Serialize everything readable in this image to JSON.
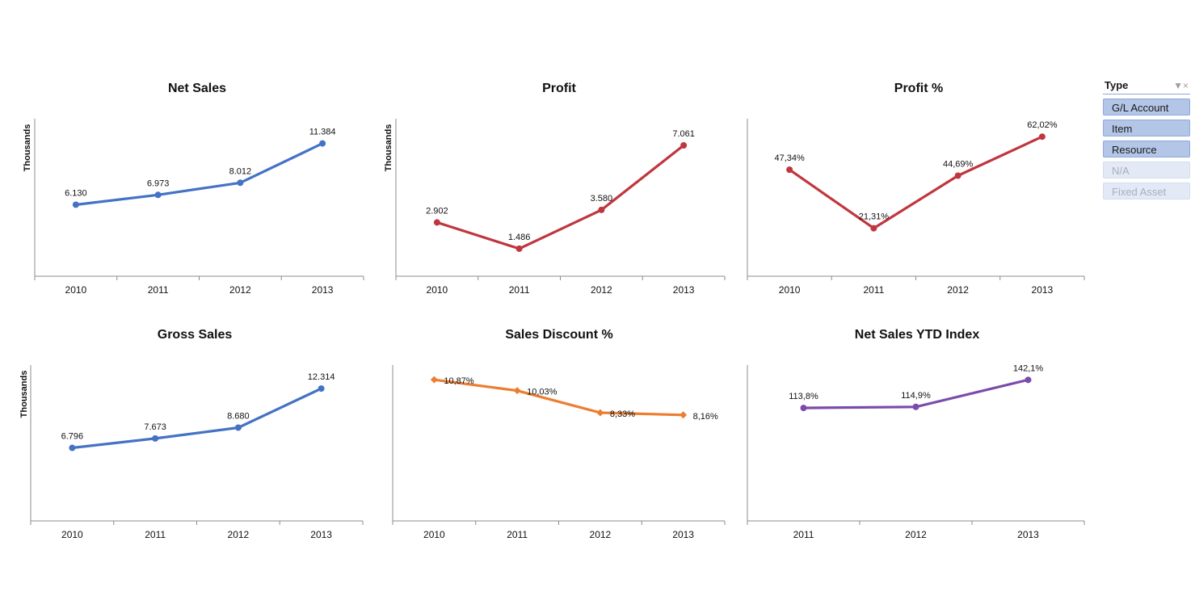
{
  "chart_data": [
    {
      "type": "line",
      "title": "Net Sales",
      "ylabel": "Thousands",
      "categories": [
        "2010",
        "2011",
        "2012",
        "2013"
      ],
      "values": [
        6.13,
        6.973,
        8.012,
        11.384
      ],
      "labels": [
        "6.130",
        "6.973",
        "8.012",
        "11.384"
      ],
      "ylim": [
        0,
        13.5
      ],
      "color": "#4472c4",
      "marker": "circle"
    },
    {
      "type": "line",
      "title": "Profit",
      "ylabel": "Thousands",
      "categories": [
        "2010",
        "2011",
        "2012",
        "2013"
      ],
      "values": [
        2.902,
        1.486,
        3.58,
        7.061
      ],
      "labels": [
        "2.902",
        "1.486",
        "3.580",
        "7.061"
      ],
      "ylim": [
        0,
        8.5
      ],
      "color": "#c0363f",
      "marker": "circle"
    },
    {
      "type": "line",
      "title": "Profit %",
      "ylabel": "",
      "categories": [
        "2010",
        "2011",
        "2012",
        "2013"
      ],
      "values": [
        47.34,
        21.31,
        44.69,
        62.02
      ],
      "labels": [
        "47,34%",
        "21,31%",
        "44,69%",
        "62,02%"
      ],
      "ylim": [
        0,
        70
      ],
      "color": "#c0363f",
      "marker": "circle"
    },
    {
      "type": "line",
      "title": "Gross Sales",
      "ylabel": "Thousands",
      "categories": [
        "2010",
        "2011",
        "2012",
        "2013"
      ],
      "values": [
        6.796,
        7.673,
        8.68,
        12.314
      ],
      "labels": [
        "6.796",
        "7.673",
        "8.680",
        "12.314"
      ],
      "ylim": [
        0,
        14.5
      ],
      "color": "#4472c4",
      "marker": "circle"
    },
    {
      "type": "line",
      "title": "Sales Discount %",
      "ylabel": "",
      "categories": [
        "2010",
        "2011",
        "2012",
        "2013"
      ],
      "values": [
        10.87,
        10.03,
        8.33,
        8.16
      ],
      "labels": [
        "10,87%",
        "10,03%",
        "8,33%",
        "8,16%"
      ],
      "ylim": [
        0,
        12
      ],
      "color": "#ed7d31",
      "marker": "diamond"
    },
    {
      "type": "line",
      "title": "Net Sales YTD Index",
      "ylabel": "",
      "categories": [
        "2011",
        "2012",
        "2013"
      ],
      "values": [
        113.8,
        114.9,
        142.1
      ],
      "labels": [
        "113,8%",
        "114,9%",
        "142,1%"
      ],
      "ylim": [
        0,
        157
      ],
      "color": "#7b4bab",
      "marker": "circle"
    }
  ],
  "slicer": {
    "title": "Type",
    "clear_icon": "clear-filter-icon",
    "items": [
      {
        "label": "G/L Account",
        "state": "selected"
      },
      {
        "label": "Item",
        "state": "selected"
      },
      {
        "label": "Resource",
        "state": "selected"
      },
      {
        "label": "N/A",
        "state": "unavailable"
      },
      {
        "label": "Fixed Asset",
        "state": "unavailable"
      }
    ]
  }
}
